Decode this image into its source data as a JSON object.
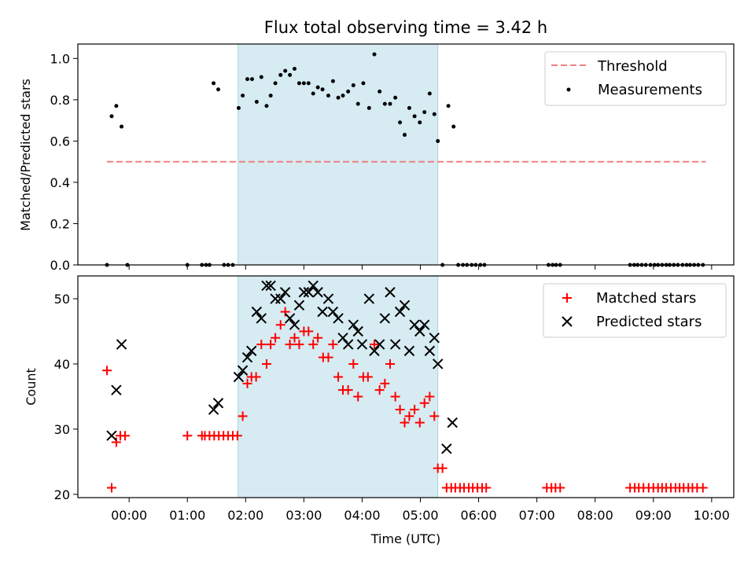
{
  "chart_data": [
    {
      "type": "scatter",
      "title": "Flux total observing time = 3.42 h",
      "ylabel": "Matched/Predicted stars",
      "ylim": [
        0,
        1.07
      ],
      "yticks": [
        0.0,
        0.2,
        0.4,
        0.6,
        0.8,
        1.0
      ],
      "ytick_labels": [
        "0.0",
        "0.2",
        "0.4",
        "0.6",
        "0.8",
        "1.0"
      ],
      "shaded_interval_hours": [
        1.87,
        5.3
      ],
      "legend": [
        "Threshold",
        "Measurements"
      ],
      "legend_position": "top-right",
      "threshold": {
        "name": "Threshold",
        "value": 0.5,
        "x_range": [
          -0.38,
          9.9
        ],
        "color": "#f08080"
      },
      "series": [
        {
          "name": "Measurements",
          "color": "#000000",
          "points": [
            [
              -0.38,
              0.0
            ],
            [
              -0.3,
              0.72
            ],
            [
              -0.22,
              0.77
            ],
            [
              -0.13,
              0.67
            ],
            [
              -0.03,
              0.0
            ],
            [
              1.0,
              0.0
            ],
            [
              1.25,
              0.0
            ],
            [
              1.32,
              0.0
            ],
            [
              1.38,
              0.0
            ],
            [
              1.45,
              0.88
            ],
            [
              1.53,
              0.85
            ],
            [
              1.63,
              0.0
            ],
            [
              1.7,
              0.0
            ],
            [
              1.78,
              0.0
            ],
            [
              1.88,
              0.76
            ],
            [
              1.95,
              0.82
            ],
            [
              2.03,
              0.9
            ],
            [
              2.11,
              0.9
            ],
            [
              2.19,
              0.79
            ],
            [
              2.27,
              0.91
            ],
            [
              2.36,
              0.77
            ],
            [
              2.43,
              0.82
            ],
            [
              2.51,
              0.88
            ],
            [
              2.6,
              0.92
            ],
            [
              2.68,
              0.94
            ],
            [
              2.76,
              0.92
            ],
            [
              2.84,
              0.95
            ],
            [
              2.92,
              0.88
            ],
            [
              3.0,
              0.88
            ],
            [
              3.08,
              0.88
            ],
            [
              3.16,
              0.83
            ],
            [
              3.24,
              0.86
            ],
            [
              3.32,
              0.85
            ],
            [
              3.42,
              0.82
            ],
            [
              3.5,
              0.89
            ],
            [
              3.59,
              0.81
            ],
            [
              3.67,
              0.82
            ],
            [
              3.76,
              0.84
            ],
            [
              3.85,
              0.87
            ],
            [
              3.93,
              0.78
            ],
            [
              4.02,
              0.88
            ],
            [
              4.12,
              0.76
            ],
            [
              4.21,
              1.02
            ],
            [
              4.3,
              0.84
            ],
            [
              4.39,
              0.78
            ],
            [
              4.48,
              0.78
            ],
            [
              4.57,
              0.81
            ],
            [
              4.65,
              0.69
            ],
            [
              4.73,
              0.63
            ],
            [
              4.81,
              0.76
            ],
            [
              4.9,
              0.72
            ],
            [
              4.99,
              0.69
            ],
            [
              5.07,
              0.74
            ],
            [
              5.16,
              0.83
            ],
            [
              5.24,
              0.73
            ],
            [
              5.3,
              0.6
            ],
            [
              5.38,
              0.0
            ],
            [
              5.48,
              0.77
            ],
            [
              5.57,
              0.67
            ],
            [
              5.65,
              0.0
            ],
            [
              5.73,
              0.0
            ],
            [
              5.8,
              0.0
            ],
            [
              5.88,
              0.0
            ],
            [
              5.95,
              0.0
            ],
            [
              6.03,
              0.0
            ],
            [
              6.1,
              0.0
            ],
            [
              7.2,
              0.0
            ],
            [
              7.27,
              0.0
            ],
            [
              7.33,
              0.0
            ],
            [
              7.4,
              0.0
            ],
            [
              8.6,
              0.0
            ],
            [
              8.67,
              0.0
            ],
            [
              8.73,
              0.0
            ],
            [
              8.8,
              0.0
            ],
            [
              8.87,
              0.0
            ],
            [
              8.95,
              0.0
            ],
            [
              9.02,
              0.0
            ],
            [
              9.08,
              0.0
            ],
            [
              9.15,
              0.0
            ],
            [
              9.22,
              0.0
            ],
            [
              9.28,
              0.0
            ],
            [
              9.35,
              0.0
            ],
            [
              9.42,
              0.0
            ],
            [
              9.5,
              0.0
            ],
            [
              9.57,
              0.0
            ],
            [
              9.63,
              0.0
            ],
            [
              9.7,
              0.0
            ],
            [
              9.77,
              0.0
            ],
            [
              9.85,
              0.0
            ]
          ]
        }
      ]
    },
    {
      "type": "scatter",
      "xlabel": "Time (UTC)",
      "ylabel": "Count",
      "ylim": [
        19.5,
        53.5
      ],
      "xlim_hours": [
        -0.88,
        10.38
      ],
      "yticks": [
        20,
        30,
        40,
        50
      ],
      "ytick_labels": [
        "20",
        "30",
        "40",
        "50"
      ],
      "xticks_hours": [
        0,
        1,
        2,
        3,
        4,
        5,
        6,
        7,
        8,
        9,
        10
      ],
      "xtick_labels": [
        "00:00",
        "01:00",
        "02:00",
        "03:00",
        "04:00",
        "05:00",
        "06:00",
        "07:00",
        "08:00",
        "09:00",
        "10:00"
      ],
      "shaded_interval_hours": [
        1.87,
        5.3
      ],
      "legend": [
        "Matched stars",
        "Predicted stars"
      ],
      "legend_position": "top-right",
      "series": [
        {
          "name": "Matched stars",
          "marker": "+",
          "color": "#ff0000",
          "points": [
            [
              -0.38,
              39
            ],
            [
              -0.3,
              21
            ],
            [
              -0.22,
              28
            ],
            [
              -0.15,
              29
            ],
            [
              -0.07,
              29
            ],
            [
              1.0,
              29
            ],
            [
              1.25,
              29
            ],
            [
              1.3,
              29
            ],
            [
              1.38,
              29
            ],
            [
              1.46,
              29
            ],
            [
              1.54,
              29
            ],
            [
              1.62,
              29
            ],
            [
              1.7,
              29
            ],
            [
              1.78,
              29
            ],
            [
              1.86,
              29
            ],
            [
              1.95,
              32
            ],
            [
              2.03,
              37
            ],
            [
              2.1,
              38
            ],
            [
              2.18,
              38
            ],
            [
              2.27,
              43
            ],
            [
              2.36,
              40
            ],
            [
              2.43,
              43
            ],
            [
              2.51,
              44
            ],
            [
              2.6,
              46
            ],
            [
              2.68,
              48
            ],
            [
              2.76,
              43
            ],
            [
              2.84,
              44
            ],
            [
              2.92,
              43
            ],
            [
              3.0,
              45
            ],
            [
              3.08,
              45
            ],
            [
              3.16,
              43
            ],
            [
              3.24,
              44
            ],
            [
              3.33,
              41
            ],
            [
              3.42,
              41
            ],
            [
              3.5,
              43
            ],
            [
              3.59,
              38
            ],
            [
              3.67,
              36
            ],
            [
              3.76,
              36
            ],
            [
              3.85,
              40
            ],
            [
              3.93,
              35
            ],
            [
              4.02,
              38
            ],
            [
              4.1,
              38
            ],
            [
              4.21,
              43
            ],
            [
              4.3,
              36
            ],
            [
              4.39,
              37
            ],
            [
              4.48,
              40
            ],
            [
              4.57,
              35
            ],
            [
              4.65,
              33
            ],
            [
              4.73,
              31
            ],
            [
              4.81,
              32
            ],
            [
              4.9,
              33
            ],
            [
              4.99,
              31
            ],
            [
              5.07,
              34
            ],
            [
              5.16,
              35
            ],
            [
              5.24,
              32
            ],
            [
              5.3,
              24
            ],
            [
              5.38,
              24
            ],
            [
              5.45,
              21
            ],
            [
              5.53,
              21
            ],
            [
              5.6,
              21
            ],
            [
              5.68,
              21
            ],
            [
              5.75,
              21
            ],
            [
              5.83,
              21
            ],
            [
              5.9,
              21
            ],
            [
              5.98,
              21
            ],
            [
              6.06,
              21
            ],
            [
              6.13,
              21
            ],
            [
              7.17,
              21
            ],
            [
              7.25,
              21
            ],
            [
              7.32,
              21
            ],
            [
              7.4,
              21
            ],
            [
              8.6,
              21
            ],
            [
              8.68,
              21
            ],
            [
              8.75,
              21
            ],
            [
              8.83,
              21
            ],
            [
              8.92,
              21
            ],
            [
              9.0,
              21
            ],
            [
              9.08,
              21
            ],
            [
              9.15,
              21
            ],
            [
              9.22,
              21
            ],
            [
              9.3,
              21
            ],
            [
              9.38,
              21
            ],
            [
              9.45,
              21
            ],
            [
              9.52,
              21
            ],
            [
              9.6,
              21
            ],
            [
              9.67,
              21
            ],
            [
              9.75,
              21
            ],
            [
              9.85,
              21
            ]
          ]
        },
        {
          "name": "Predicted stars",
          "marker": "x",
          "color": "#000000",
          "points": [
            [
              -0.3,
              29
            ],
            [
              -0.22,
              36
            ],
            [
              -0.13,
              43
            ],
            [
              1.45,
              33
            ],
            [
              1.53,
              34
            ],
            [
              1.88,
              38
            ],
            [
              1.95,
              39
            ],
            [
              2.03,
              41
            ],
            [
              2.1,
              42
            ],
            [
              2.19,
              48
            ],
            [
              2.27,
              47
            ],
            [
              2.36,
              52
            ],
            [
              2.43,
              52
            ],
            [
              2.51,
              50
            ],
            [
              2.6,
              50
            ],
            [
              2.68,
              51
            ],
            [
              2.76,
              47
            ],
            [
              2.84,
              46
            ],
            [
              2.92,
              49
            ],
            [
              3.0,
              51
            ],
            [
              3.08,
              51
            ],
            [
              3.16,
              52
            ],
            [
              3.24,
              51
            ],
            [
              3.32,
              48
            ],
            [
              3.42,
              50
            ],
            [
              3.5,
              48
            ],
            [
              3.59,
              47
            ],
            [
              3.67,
              44
            ],
            [
              3.76,
              43
            ],
            [
              3.85,
              46
            ],
            [
              3.93,
              45
            ],
            [
              4.0,
              43
            ],
            [
              4.12,
              50
            ],
            [
              4.21,
              42
            ],
            [
              4.3,
              43
            ],
            [
              4.39,
              47
            ],
            [
              4.48,
              51
            ],
            [
              4.57,
              43
            ],
            [
              4.65,
              48
            ],
            [
              4.73,
              49
            ],
            [
              4.81,
              42
            ],
            [
              4.9,
              46
            ],
            [
              4.99,
              45
            ],
            [
              5.07,
              46
            ],
            [
              5.16,
              42
            ],
            [
              5.24,
              44
            ],
            [
              5.3,
              40
            ],
            [
              5.45,
              27
            ],
            [
              5.55,
              31
            ]
          ]
        }
      ]
    }
  ]
}
